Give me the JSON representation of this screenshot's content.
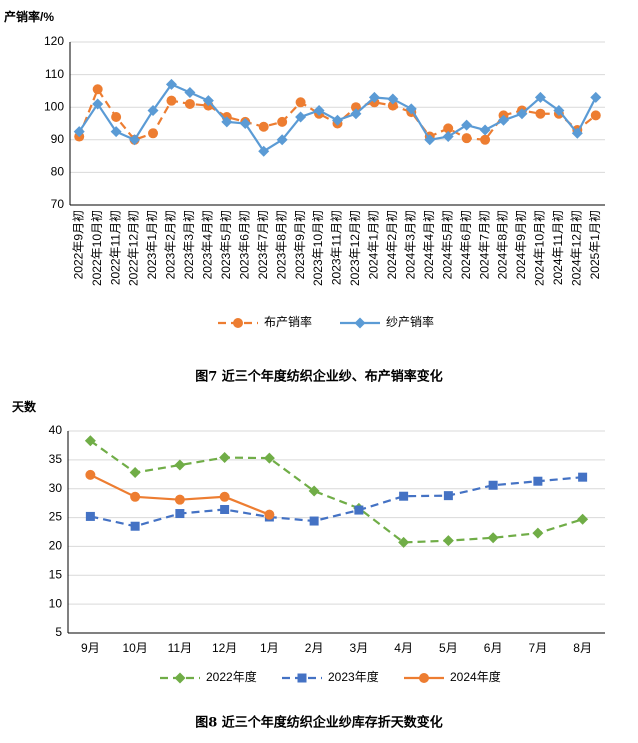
{
  "chart_data": [
    {
      "type": "line",
      "ylabel": "产销率/%",
      "caption": "图7   近三个年度纺织企业纱、布产销率变化",
      "categories": [
        "2022年9月初",
        "2022年10月初",
        "2022年11月初",
        "2022年12月初",
        "2023年1月初",
        "2023年2月初",
        "2023年3月初",
        "2023年4月初",
        "2023年5月初",
        "2023年6月初",
        "2023年7月初",
        "2023年8月初",
        "2023年9月初",
        "2023年10月初",
        "2023年11月初",
        "2023年12月初",
        "2024年1月初",
        "2024年2月初",
        "2024年3月初",
        "2024年4月初",
        "2024年5月初",
        "2024年6月初",
        "2024年7月初",
        "2024年8月初",
        "2024年9月初",
        "2024年10月初",
        "2024年11月初",
        "2024年12月初",
        "2025年1月初"
      ],
      "series": [
        {
          "name": "布产销率",
          "color": "#ED7D31",
          "marker": "circle",
          "dashed": true,
          "values": [
            91,
            105.5,
            97,
            90,
            92,
            102,
            101,
            100.5,
            97,
            95.5,
            94,
            95.5,
            101.5,
            98,
            95,
            100,
            101.5,
            100.5,
            98.5,
            91,
            93.5,
            90.5,
            90,
            97.5,
            99,
            98,
            98,
            93,
            97.5
          ]
        },
        {
          "name": "纱产销率",
          "color": "#5B9BD5",
          "marker": "diamond",
          "dashed": false,
          "values": [
            92.5,
            101,
            92.5,
            90,
            99,
            107,
            104.5,
            102,
            95.5,
            95,
            86.5,
            90,
            97,
            99,
            96,
            98,
            103,
            102.5,
            99.5,
            90,
            91,
            94.5,
            93,
            96,
            98,
            103,
            99,
            92,
            103
          ]
        }
      ],
      "ylim": [
        70,
        120
      ],
      "yticks": [
        70,
        80,
        90,
        100,
        110,
        120
      ],
      "grid": true
    },
    {
      "type": "line",
      "ylabel": "天数",
      "caption": "图8   近三个年度纺织企业纱库存折天数变化",
      "categories": [
        "9月",
        "10月",
        "11月",
        "12月",
        "1月",
        "2月",
        "3月",
        "4月",
        "5月",
        "6月",
        "7月",
        "8月"
      ],
      "series": [
        {
          "name": "2022年度",
          "color": "#70AD47",
          "marker": "diamond",
          "dashed": true,
          "values": [
            38.3,
            32.8,
            34.1,
            35.4,
            35.3,
            29.6,
            26.6,
            20.7,
            21,
            21.5,
            22.3,
            24.7
          ]
        },
        {
          "name": "2023年度",
          "color": "#4472C4",
          "marker": "square",
          "dashed": true,
          "values": [
            25.2,
            23.5,
            25.7,
            26.4,
            25.1,
            24.4,
            26.3,
            28.7,
            28.8,
            30.6,
            31.3,
            32
          ]
        },
        {
          "name": "2024年度",
          "color": "#ED7D31",
          "marker": "circle",
          "dashed": false,
          "values": [
            32.4,
            28.6,
            28.1,
            28.6,
            25.5,
            null,
            null,
            null,
            null,
            null,
            null,
            null
          ]
        }
      ],
      "ylim": [
        5,
        40
      ],
      "yticks": [
        5,
        10,
        15,
        20,
        25,
        30,
        35,
        40
      ],
      "grid": true
    }
  ]
}
